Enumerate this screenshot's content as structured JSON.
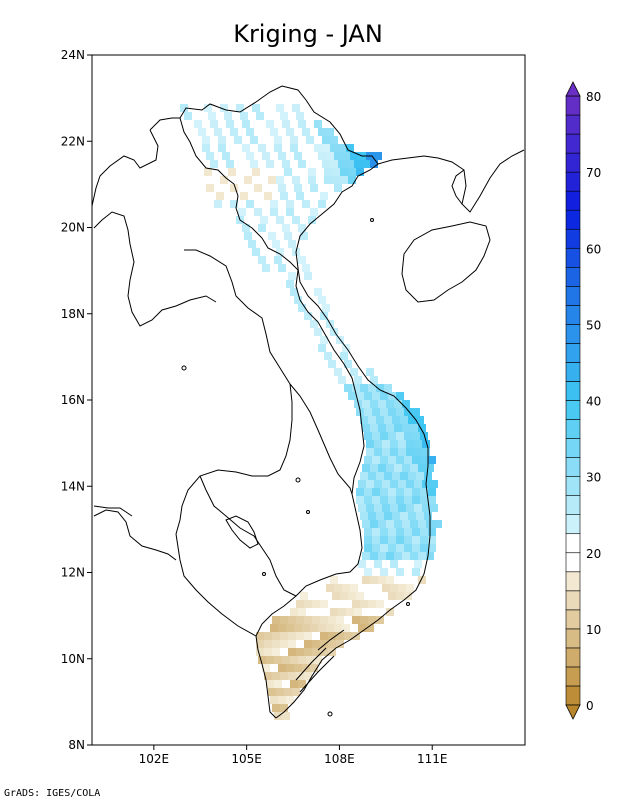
{
  "map": {
    "title": "Kriging - JAN",
    "credit": "GrADS: IGES/COLA",
    "lat_ticks": [
      "8N",
      "10N",
      "12N",
      "14N",
      "16N",
      "18N",
      "20N",
      "22N",
      "24N"
    ],
    "lon_ticks": [
      "102E",
      "105E",
      "108E",
      "111E"
    ],
    "lat_range": [
      8,
      24
    ],
    "lon_range": [
      100,
      114
    ]
  },
  "colorbar": {
    "labels": [
      "0",
      "10",
      "20",
      "30",
      "40",
      "50",
      "60",
      "70",
      "80"
    ],
    "min": 0,
    "max": 80,
    "step": 2.5,
    "colors": {
      "brown_low": "#b8862a",
      "brown_high": "#f7f1e0",
      "white": "#ffffff",
      "cyan_light": "#d6f4fb",
      "cyan_mid": "#3fc6f2",
      "blue": "#1d6fe6",
      "blue_deep": "#0a1ee0",
      "purple": "#6a2fc4"
    }
  }
}
